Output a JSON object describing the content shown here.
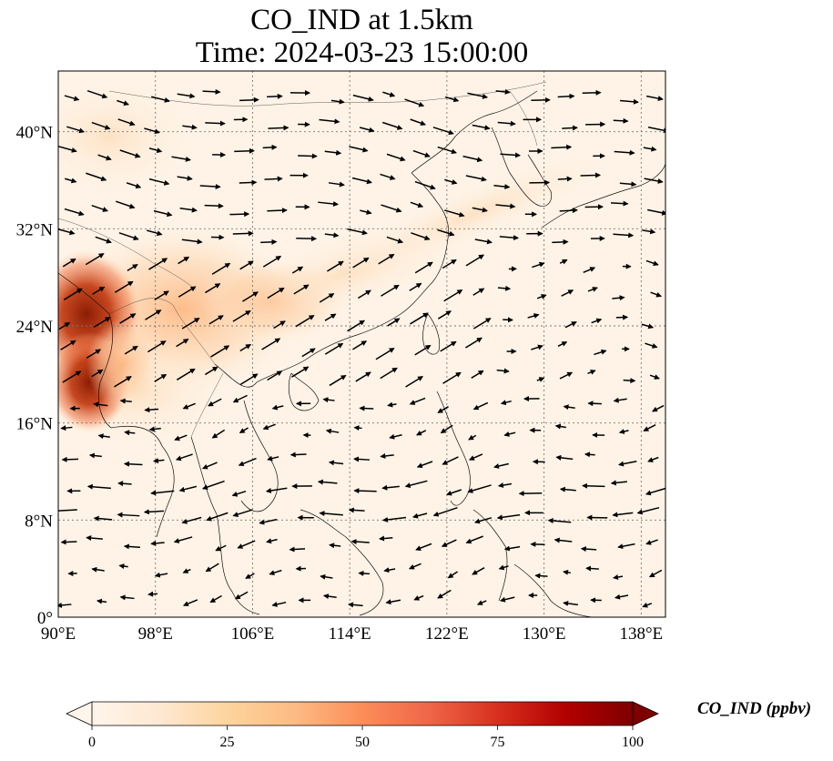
{
  "title": {
    "line1": "CO_IND at 1.5km",
    "line2": "Time: 2024-03-23 15:00:00"
  },
  "map": {
    "lon_range": [
      90,
      140
    ],
    "lat_range": [
      0,
      45
    ],
    "lon_tick_labels": [
      "90°E",
      "98°E",
      "106°E",
      "114°E",
      "122°E",
      "130°E",
      "138°E"
    ],
    "lat_tick_labels": [
      "0°",
      "8°N",
      "16°N",
      "24°N",
      "32°N",
      "40°N"
    ],
    "gridlines": true,
    "field_colors": [
      "#fff5eb",
      "#fee6ce",
      "#fdd0a2",
      "#fdae6b",
      "#fd8d3c",
      "#f16913",
      "#d94801",
      "#a63603",
      "#7f2704"
    ],
    "wind_arrow_color": "#000000"
  },
  "colorbar": {
    "label": "CO_IND (ppbv)",
    "tick_labels": [
      "0",
      "25",
      "50",
      "75",
      "100"
    ],
    "range": [
      0,
      100
    ],
    "extend": "both",
    "colormap": "OrRd"
  }
}
